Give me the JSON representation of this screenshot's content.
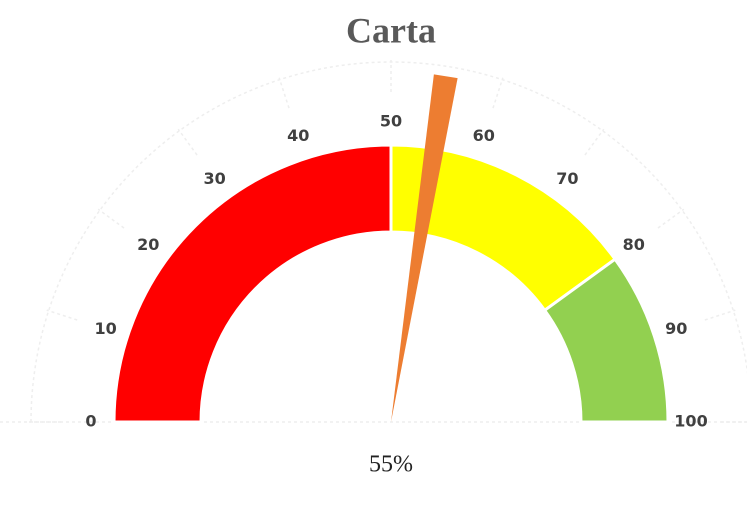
{
  "chart_data": {
    "type": "gauge",
    "title": "Carta",
    "bands": [
      {
        "value": 50,
        "color": "#ff0000"
      },
      {
        "value": 30,
        "color": "#ffff00"
      },
      {
        "value": 20,
        "color": "#92d050"
      }
    ],
    "value": 55,
    "value_label": "55%",
    "needle_color": "#ed7d31",
    "range": [
      0,
      100
    ],
    "ticks": [
      0,
      10,
      20,
      30,
      40,
      50,
      60,
      70,
      80,
      90,
      100
    ]
  }
}
